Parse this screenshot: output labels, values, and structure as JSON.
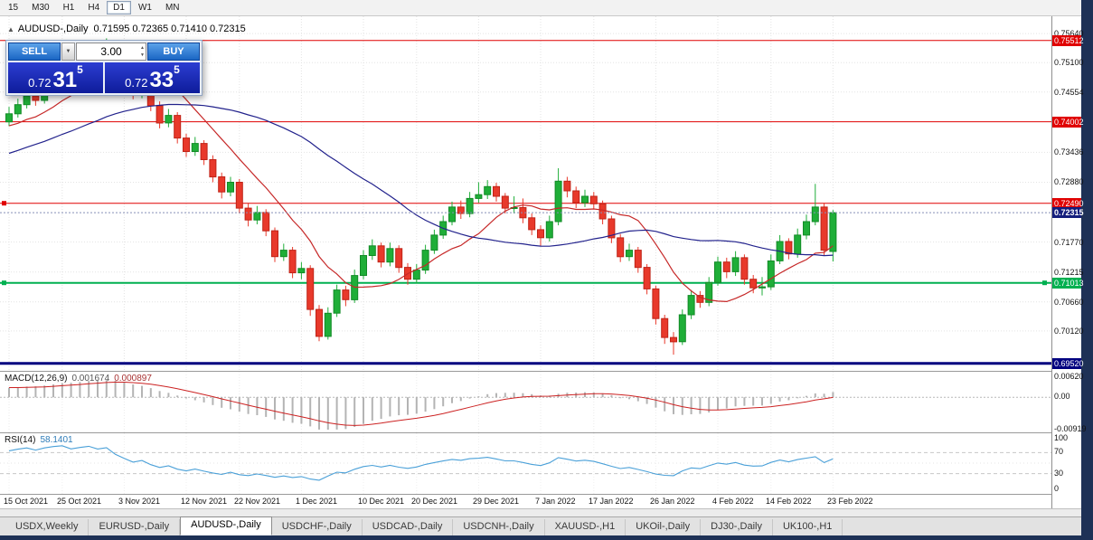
{
  "toolbar": {
    "timeframes": [
      "15",
      "M30",
      "H1",
      "H4",
      "D1",
      "W1",
      "MN"
    ],
    "active": "D1"
  },
  "chart_header": {
    "collapse_icon": "▲",
    "title": "AUDUSD-,Daily",
    "ohlc": "0.71595 0.72365 0.71410 0.72315"
  },
  "trade_panel": {
    "sell_label": "SELL",
    "buy_label": "BUY",
    "volume": "3.00",
    "sell_price": {
      "big": "0.72",
      "mid": "31",
      "sup": "5"
    },
    "buy_price": {
      "big": "0.72",
      "mid": "33",
      "sup": "5"
    }
  },
  "colors": {
    "candle_up": "#1fae38",
    "candle_up_border": "#128a26",
    "candle_down": "#e8392b",
    "candle_down_border": "#bf2317",
    "grid": "#e3e3e3",
    "bid_line": "#8890b8"
  },
  "price_axis": {
    "ticks": [
      {
        "label": "0.75640",
        "price": 0.7564,
        "type": "plain"
      },
      {
        "label": "0.75512",
        "price": 0.75512,
        "type": "resistance"
      },
      {
        "label": "0.75100",
        "price": 0.751,
        "type": "plain"
      },
      {
        "label": "0.74554",
        "price": 0.74554,
        "type": "plain"
      },
      {
        "label": "0.74002",
        "price": 0.74002,
        "type": "resistance"
      },
      {
        "label": "0.73436",
        "price": 0.73436,
        "type": "plain"
      },
      {
        "label": "0.72880",
        "price": 0.7288,
        "type": "plain"
      },
      {
        "label": "0.72490",
        "price": 0.7249,
        "type": "resistance"
      },
      {
        "label": "0.72315",
        "price": 0.72315,
        "type": "current"
      },
      {
        "label": "0.71770",
        "price": 0.7177,
        "type": "plain"
      },
      {
        "label": "0.71215",
        "price": 0.71215,
        "type": "plain"
      },
      {
        "label": "0.71013",
        "price": 0.71013,
        "type": "support"
      },
      {
        "label": "0.70660",
        "price": 0.7066,
        "type": "plain"
      },
      {
        "label": "0.70120",
        "price": 0.7012,
        "type": "plain"
      },
      {
        "label": "0.69520",
        "price": 0.6952,
        "type": "level"
      }
    ]
  },
  "tabs": {
    "items": [
      "USDX,Weekly",
      "EURUSD-,Daily",
      "AUDUSD-,Daily",
      "USDCHF-,Daily",
      "USDCAD-,Daily",
      "USDCNH-,Daily",
      "XAUUSD-,H1",
      "UKOil-,Daily",
      "DJ30-,Daily",
      "UK100-,H1"
    ],
    "active_index": 2
  },
  "chart_data": [
    {
      "type": "candlestick",
      "title": "AUDUSD-,Daily",
      "current_price": 0.72315,
      "y_range": [
        0.6938,
        0.7596
      ],
      "x_labels": [
        "15 Oct 2021",
        "25 Oct 2021",
        "3 Nov 2021",
        "12 Nov 2021",
        "22 Nov 2021",
        "1 Dec 2021",
        "10 Dec 2021",
        "20 Dec 2021",
        "29 Dec 2021",
        "7 Jan 2022",
        "17 Jan 2022",
        "26 Jan 2022",
        "4 Feb 2022",
        "14 Feb 2022",
        "23 Feb 2022"
      ],
      "x_label_indices": [
        0,
        6,
        13,
        20,
        26,
        33,
        40,
        46,
        53,
        60,
        66,
        73,
        80,
        86,
        93
      ],
      "h_lines": [
        {
          "price": 0.75512,
          "color": "#e00000",
          "width": 1
        },
        {
          "price": 0.74002,
          "color": "#e00000",
          "width": 1
        },
        {
          "price": 0.7249,
          "color": "#e00000",
          "width": 1,
          "left_marker": true
        },
        {
          "price": 0.71013,
          "color": "#00b050",
          "width": 2,
          "left_marker": true,
          "right_marker": true
        },
        {
          "price": 0.6952,
          "color": "#000080",
          "width": 3
        }
      ],
      "overlays": {
        "ma_fast": {
          "period": 10,
          "color": "#c62828"
        },
        "ma_slow": {
          "period": 34,
          "color": "#22228c"
        }
      },
      "ma_seed": [
        0.724,
        0.7252,
        0.7246,
        0.726,
        0.7275,
        0.7268,
        0.7282,
        0.7295,
        0.7288,
        0.7302,
        0.7315,
        0.7308,
        0.732,
        0.7332,
        0.7325,
        0.734,
        0.7352,
        0.7346,
        0.7358,
        0.737,
        0.7362,
        0.7375,
        0.7368,
        0.738,
        0.7372,
        0.7385,
        0.7378,
        0.739,
        0.7382,
        0.7394,
        0.7388,
        0.7398,
        0.7392,
        0.7405
      ],
      "candles": [
        [
          0.74,
          0.7428,
          0.7392,
          0.7415
        ],
        [
          0.7415,
          0.7443,
          0.7408,
          0.7432
        ],
        [
          0.7432,
          0.7459,
          0.7425,
          0.7448
        ],
        [
          0.7448,
          0.7461,
          0.743,
          0.744
        ],
        [
          0.744,
          0.7478,
          0.7434,
          0.7468
        ],
        [
          0.7468,
          0.75,
          0.7461,
          0.749
        ],
        [
          0.749,
          0.7515,
          0.7483,
          0.7505
        ],
        [
          0.7505,
          0.7517,
          0.7482,
          0.7492
        ],
        [
          0.7492,
          0.7526,
          0.7486,
          0.7515
        ],
        [
          0.7515,
          0.7546,
          0.7508,
          0.7536
        ],
        [
          0.7536,
          0.7548,
          0.7514,
          0.7524
        ],
        [
          0.7524,
          0.7555,
          0.7516,
          0.7546
        ],
        [
          0.7546,
          0.7552,
          0.75,
          0.751
        ],
        [
          0.751,
          0.752,
          0.7472,
          0.7482
        ],
        [
          0.7482,
          0.749,
          0.7442,
          0.7452
        ],
        [
          0.7452,
          0.748,
          0.7444,
          0.7468
        ],
        [
          0.7468,
          0.7474,
          0.742,
          0.743
        ],
        [
          0.743,
          0.7438,
          0.7388,
          0.7398
        ],
        [
          0.7398,
          0.7424,
          0.739,
          0.7412
        ],
        [
          0.7412,
          0.7418,
          0.736,
          0.737
        ],
        [
          0.737,
          0.7378,
          0.7335,
          0.7345
        ],
        [
          0.7345,
          0.7372,
          0.7337,
          0.736
        ],
        [
          0.736,
          0.7366,
          0.732,
          0.733
        ],
        [
          0.733,
          0.7338,
          0.7288,
          0.7298
        ],
        [
          0.7298,
          0.7306,
          0.7258,
          0.727
        ],
        [
          0.727,
          0.7298,
          0.7262,
          0.7288
        ],
        [
          0.7288,
          0.7294,
          0.723,
          0.724
        ],
        [
          0.724,
          0.725,
          0.7206,
          0.7218
        ],
        [
          0.7218,
          0.7244,
          0.721,
          0.7232
        ],
        [
          0.7232,
          0.7238,
          0.7188,
          0.7198
        ],
        [
          0.7198,
          0.7204,
          0.714,
          0.715
        ],
        [
          0.715,
          0.7174,
          0.7142,
          0.7162
        ],
        [
          0.7162,
          0.7168,
          0.711,
          0.712
        ],
        [
          0.712,
          0.714,
          0.7108,
          0.7128
        ],
        [
          0.7128,
          0.7134,
          0.704,
          0.7052
        ],
        [
          0.7052,
          0.706,
          0.6993,
          0.7002
        ],
        [
          0.7002,
          0.7056,
          0.6996,
          0.7045
        ],
        [
          0.7045,
          0.7098,
          0.7038,
          0.7088
        ],
        [
          0.7088,
          0.7096,
          0.7058,
          0.707
        ],
        [
          0.707,
          0.7126,
          0.7064,
          0.7115
        ],
        [
          0.7115,
          0.7162,
          0.7108,
          0.7152
        ],
        [
          0.7152,
          0.7182,
          0.7144,
          0.717
        ],
        [
          0.717,
          0.7176,
          0.713,
          0.714
        ],
        [
          0.714,
          0.7176,
          0.7132,
          0.7165
        ],
        [
          0.7165,
          0.7171,
          0.712,
          0.713
        ],
        [
          0.713,
          0.7138,
          0.7098,
          0.7108
        ],
        [
          0.7108,
          0.7136,
          0.71,
          0.7125
        ],
        [
          0.7125,
          0.7172,
          0.7118,
          0.7162
        ],
        [
          0.7162,
          0.72,
          0.7155,
          0.719
        ],
        [
          0.719,
          0.7226,
          0.7183,
          0.7215
        ],
        [
          0.7215,
          0.7252,
          0.7208,
          0.7242
        ],
        [
          0.7242,
          0.7254,
          0.722,
          0.723
        ],
        [
          0.723,
          0.727,
          0.7223,
          0.7258
        ],
        [
          0.7258,
          0.7288,
          0.725,
          0.7265
        ],
        [
          0.7265,
          0.7292,
          0.7257,
          0.728
        ],
        [
          0.728,
          0.7287,
          0.7252,
          0.7262
        ],
        [
          0.7262,
          0.7268,
          0.723,
          0.724
        ],
        [
          0.724,
          0.7262,
          0.723,
          0.7241
        ],
        [
          0.7241,
          0.7258,
          0.7212,
          0.7222
        ],
        [
          0.7222,
          0.723,
          0.719,
          0.72
        ],
        [
          0.72,
          0.7208,
          0.717,
          0.7185
        ],
        [
          0.7185,
          0.7226,
          0.7178,
          0.7215
        ],
        [
          0.7215,
          0.7314,
          0.7208,
          0.729
        ],
        [
          0.729,
          0.7298,
          0.726,
          0.7272
        ],
        [
          0.7272,
          0.728,
          0.724,
          0.725
        ],
        [
          0.725,
          0.7274,
          0.7242,
          0.7262
        ],
        [
          0.7262,
          0.727,
          0.7238,
          0.7248
        ],
        [
          0.7248,
          0.7254,
          0.721,
          0.722
        ],
        [
          0.722,
          0.7226,
          0.7175,
          0.7185
        ],
        [
          0.7185,
          0.7192,
          0.714,
          0.715
        ],
        [
          0.715,
          0.7174,
          0.7142,
          0.7162
        ],
        [
          0.7162,
          0.7168,
          0.712,
          0.713
        ],
        [
          0.713,
          0.7136,
          0.708,
          0.709
        ],
        [
          0.709,
          0.7096,
          0.7024,
          0.7035
        ],
        [
          0.7035,
          0.7042,
          0.6988,
          0.7
        ],
        [
          0.7,
          0.701,
          0.6968,
          0.6992
        ],
        [
          0.6992,
          0.7052,
          0.6986,
          0.7042
        ],
        [
          0.7042,
          0.7088,
          0.7034,
          0.7078
        ],
        [
          0.7078,
          0.7086,
          0.7055,
          0.7065
        ],
        [
          0.7065,
          0.7112,
          0.7058,
          0.7102
        ],
        [
          0.7102,
          0.715,
          0.7096,
          0.714
        ],
        [
          0.714,
          0.7148,
          0.711,
          0.7122
        ],
        [
          0.7122,
          0.716,
          0.7114,
          0.7148
        ],
        [
          0.7148,
          0.7154,
          0.7098,
          0.7108
        ],
        [
          0.7108,
          0.7116,
          0.7082,
          0.7092
        ],
        [
          0.7092,
          0.7112,
          0.7078,
          0.7094
        ],
        [
          0.7094,
          0.7154,
          0.7088,
          0.7142
        ],
        [
          0.7142,
          0.719,
          0.7136,
          0.7178
        ],
        [
          0.7178,
          0.7184,
          0.7145,
          0.7155
        ],
        [
          0.7155,
          0.7202,
          0.7148,
          0.719
        ],
        [
          0.719,
          0.7228,
          0.7182,
          0.7215
        ],
        [
          0.7215,
          0.7285,
          0.7208,
          0.7242
        ],
        [
          0.7242,
          0.725,
          0.7152,
          0.7162
        ],
        [
          0.71595,
          0.72365,
          0.7141,
          0.72315
        ]
      ]
    },
    {
      "type": "macd",
      "label": "MACD(12,26,9)",
      "value_main": "0.001674",
      "value_signal": "0.000897",
      "params": [
        12,
        26,
        9
      ],
      "y_max": 0.0062,
      "y_min": -0.00919,
      "axis": [
        {
          "label": "0.00620",
          "v": 0.0062
        },
        {
          "label": "0.00",
          "v": 0
        },
        {
          "label": "-0.00919",
          "v": -0.00919
        }
      ],
      "colors": {
        "histogram": "#b4b4b4",
        "signal": "#cc2222"
      }
    },
    {
      "type": "rsi",
      "label": "RSI(14)",
      "value": "58.1401",
      "period": 14,
      "levels": [
        70,
        30
      ],
      "axis": [
        {
          "label": "100",
          "v": 100
        },
        {
          "label": "70",
          "v": 70
        },
        {
          "label": "30",
          "v": 30
        },
        {
          "label": "0",
          "v": 0
        }
      ],
      "color": "#4aa0d8"
    }
  ]
}
